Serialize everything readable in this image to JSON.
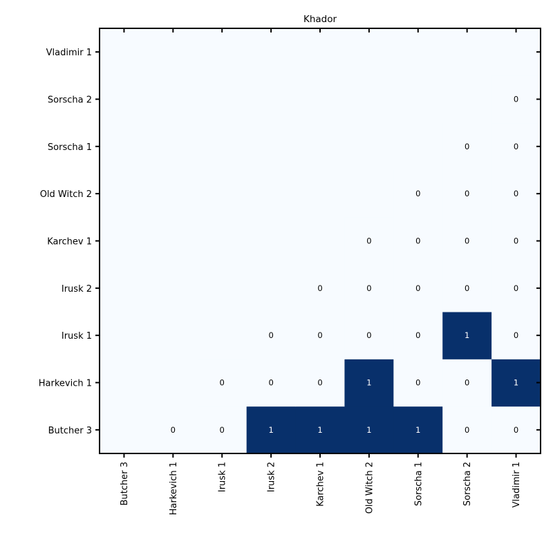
{
  "chart_data": {
    "type": "heatmap",
    "title": "Khador",
    "x_labels": [
      "Butcher 3",
      "Harkevich 1",
      "Irusk 1",
      "Irusk 2",
      "Karchev 1",
      "Old Witch 2",
      "Sorscha 1",
      "Sorscha 2",
      "Vladimir 1"
    ],
    "y_labels": [
      "Butcher 3",
      "Harkevich 1",
      "Irusk 1",
      "Irusk 2",
      "Karchev 1",
      "Old Witch 2",
      "Sorscha 1",
      "Sorscha 2",
      "Vladimir 1"
    ],
    "values": [
      [
        null,
        0,
        0,
        1,
        1,
        1,
        1,
        0,
        0
      ],
      [
        null,
        null,
        0,
        0,
        0,
        1,
        0,
        0,
        1
      ],
      [
        null,
        null,
        null,
        0,
        0,
        0,
        0,
        1,
        0
      ],
      [
        null,
        null,
        null,
        null,
        0,
        0,
        0,
        0,
        0
      ],
      [
        null,
        null,
        null,
        null,
        null,
        0,
        0,
        0,
        0
      ],
      [
        null,
        null,
        null,
        null,
        null,
        null,
        0,
        0,
        0
      ],
      [
        null,
        null,
        null,
        null,
        null,
        null,
        null,
        0,
        0
      ],
      [
        null,
        null,
        null,
        null,
        null,
        null,
        null,
        null,
        0
      ],
      [
        null,
        null,
        null,
        null,
        null,
        null,
        null,
        null,
        null
      ]
    ],
    "vmin": 0,
    "vmax": 1,
    "colormap": "Blues",
    "low_color": "#f7fbff",
    "high_color": "#08306b",
    "grid": false,
    "legend": "none"
  }
}
